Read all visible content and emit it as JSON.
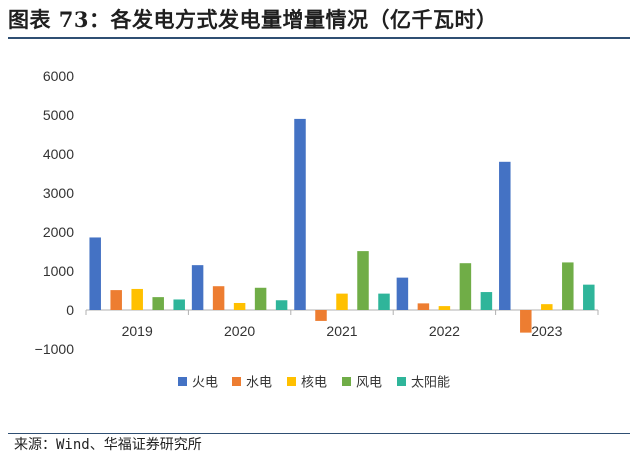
{
  "header": {
    "title": "图表 73：各发电方式发电量增量情况（亿千瓦时）"
  },
  "footer": {
    "source": "来源：Wind、华福证券研究所"
  },
  "colors": {
    "rule": "#2f4f73",
    "axis": "#b0b0b0"
  },
  "chart_data": {
    "type": "bar",
    "title": "各发电方式发电量增量情况（亿千瓦时）",
    "categories": [
      "2019",
      "2020",
      "2021",
      "2022",
      "2023"
    ],
    "series": [
      {
        "name": "火电",
        "color": "#4472c4",
        "values": [
          1860,
          1150,
          4900,
          830,
          3800
        ]
      },
      {
        "name": "水电",
        "color": "#ed7d31",
        "values": [
          510,
          610,
          -280,
          170,
          -580
        ]
      },
      {
        "name": "核电",
        "color": "#ffc000",
        "values": [
          540,
          180,
          420,
          100,
          150
        ]
      },
      {
        "name": "风电",
        "color": "#70ad47",
        "values": [
          330,
          570,
          1510,
          1200,
          1220
        ]
      },
      {
        "name": "太阳能",
        "color": "#2fb59a",
        "values": [
          270,
          250,
          420,
          460,
          650
        ]
      }
    ],
    "ylim": [
      -1000,
      6000
    ],
    "yticks": [
      6000,
      5000,
      4000,
      3000,
      2000,
      1000,
      0,
      -1000
    ],
    "yticklabels": [
      "6000",
      "5000",
      "4000",
      "3000",
      "2000",
      "1000",
      "0",
      "−1000"
    ],
    "grid": false,
    "legend": "bottom"
  }
}
